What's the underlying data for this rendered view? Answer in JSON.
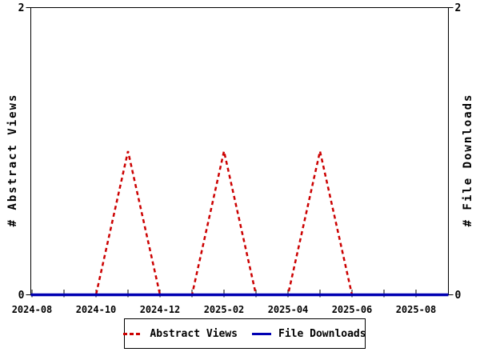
{
  "chart_data": {
    "type": "line",
    "title": "",
    "x": [
      "2024-08",
      "2024-09",
      "2024-10",
      "2024-11",
      "2024-12",
      "2025-01",
      "2025-02",
      "2025-03",
      "2025-04",
      "2025-05",
      "2025-06",
      "2025-07",
      "2025-08"
    ],
    "x_tick_labels": [
      "2024-08",
      "2024-10",
      "2024-12",
      "2025-02",
      "2025-04",
      "2025-06",
      "2025-08"
    ],
    "series": [
      {
        "name": "Abstract Views",
        "values": [
          0,
          0,
          0,
          1,
          0,
          0,
          1,
          0,
          0,
          1,
          0,
          0,
          0
        ],
        "color": "#cc0000",
        "style": "dashed"
      },
      {
        "name": "File Downloads",
        "values": [
          0,
          0,
          0,
          0,
          0,
          0,
          0,
          0,
          0,
          0,
          0,
          0,
          0
        ],
        "color": "#0000b3",
        "style": "solid"
      }
    ],
    "ylabel_left": "# Abstract Views",
    "ylabel_right": "# File Downloads",
    "ylim": [
      0,
      2
    ],
    "y_tick_labels": [
      "0",
      "2"
    ],
    "grid": false,
    "legend_position": "bottom-center",
    "background_color": "#ffffff",
    "axis_color": "#000000"
  },
  "legend": {
    "items": [
      {
        "label": "Abstract Views",
        "color": "#cc0000",
        "style": "dashed"
      },
      {
        "label": "File Downloads",
        "color": "#0000b3",
        "style": "solid"
      }
    ]
  }
}
